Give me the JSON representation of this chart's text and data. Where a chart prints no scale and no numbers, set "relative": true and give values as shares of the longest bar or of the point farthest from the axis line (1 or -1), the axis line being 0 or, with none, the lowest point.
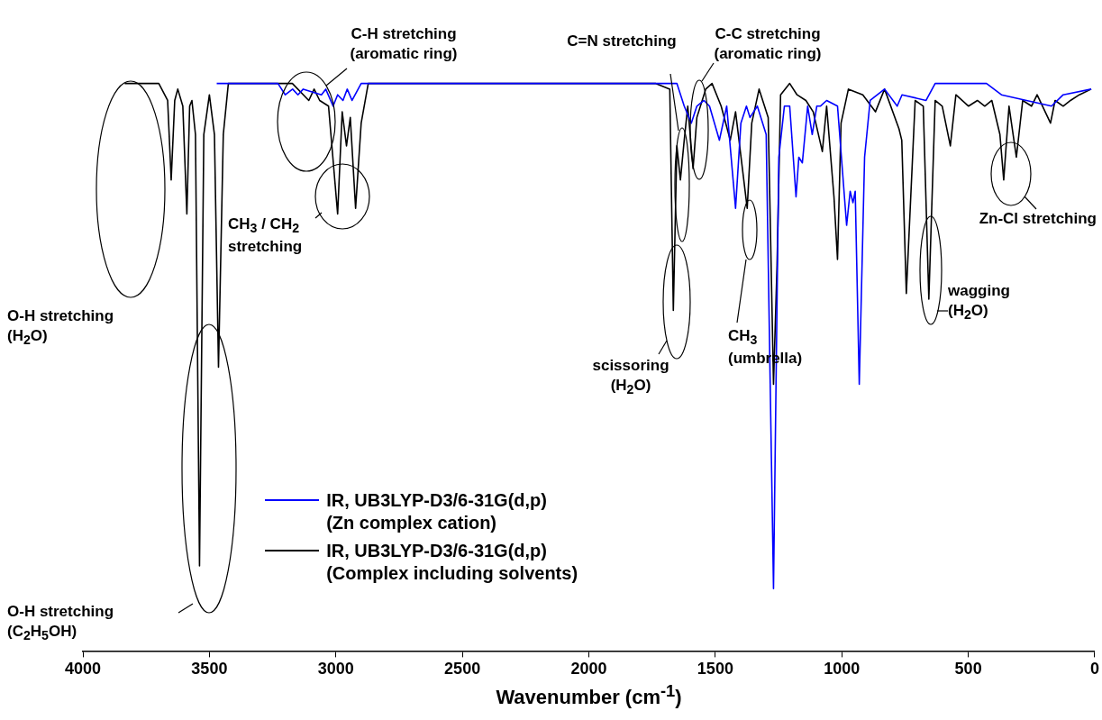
{
  "chart_data": {
    "type": "line",
    "relative": true,
    "xlabel": "Wavenumber (cm$^{-1}$)",
    "xlim": [
      4000,
      0
    ],
    "xticks": [
      4000,
      3500,
      3000,
      2500,
      2000,
      1500,
      1000,
      500,
      0
    ],
    "legend": "bottom",
    "series": [
      {
        "name": "IR, UB3LYP-D3/6-31G(d,p)\n(Zn complex cation)",
        "color": "#0000ff",
        "x": [
          3471,
          3229,
          3200,
          3171,
          3150,
          3129,
          3057,
          3040,
          3011,
          2993,
          2972,
          2955,
          2936,
          2900,
          1737,
          1652,
          1623,
          1595,
          1573,
          1545,
          1523,
          1484,
          1455,
          1420,
          1399,
          1377,
          1363,
          1334,
          1299,
          1270,
          1249,
          1227,
          1206,
          1181,
          1170,
          1156,
          1135,
          1117,
          1099,
          1085,
          1060,
          1017,
          981,
          967,
          956,
          947,
          931,
          910,
          888,
          831,
          781,
          762,
          667,
          631,
          428,
          369,
          171,
          125,
          14
        ],
        "values": [
          1,
          1,
          0.98,
          0.99,
          0.98,
          0.99,
          0.98,
          0.99,
          0.96,
          0.98,
          0.97,
          0.99,
          0.97,
          1,
          1,
          1,
          0.96,
          0.93,
          0.96,
          0.97,
          0.96,
          0.9,
          0.96,
          0.78,
          0.93,
          0.96,
          0.94,
          0.96,
          0.91,
          0.11,
          0.87,
          0.96,
          0.96,
          0.8,
          0.87,
          0.86,
          0.96,
          0.91,
          0.96,
          0.96,
          0.97,
          0.96,
          0.75,
          0.81,
          0.79,
          0.81,
          0.47,
          0.87,
          0.97,
          0.99,
          0.96,
          0.98,
          0.97,
          1,
          1,
          0.98,
          0.96,
          0.98,
          0.99
        ]
      },
      {
        "name": "IR, UB3LYP-D3/6-31G(d,p)\n(Complex including solvents)",
        "color": "#000000",
        "x": [
          3835,
          3700,
          3665,
          3651,
          3637,
          3625,
          3605,
          3589,
          3578,
          3569,
          3555,
          3539,
          3522,
          3500,
          3480,
          3464,
          3445,
          3425,
          3400,
          3254,
          3172,
          3107,
          3086,
          3064,
          3029,
          2993,
          2975,
          2958,
          2943,
          2922,
          2900,
          2872,
          2800,
          1737,
          1680,
          1666,
          1652,
          1638,
          1623,
          1609,
          1588,
          1573,
          1538,
          1513,
          1477,
          1441,
          1420,
          1374,
          1356,
          1327,
          1291,
          1270,
          1256,
          1242,
          1206,
          1177,
          1142,
          1113,
          1077,
          1060,
          1031,
          1017,
          1003,
          974,
          917,
          867,
          831,
          774,
          763,
          745,
          710,
          678,
          656,
          631,
          603,
          571,
          549,
          499,
          464,
          435,
          407,
          375,
          360,
          339,
          310,
          285,
          250,
          228,
          175,
          157,
          125,
          96,
          61,
          14
        ],
        "values": [
          1,
          1,
          0.97,
          0.83,
          0.97,
          0.99,
          0.96,
          0.77,
          0.96,
          0.97,
          0.91,
          0.15,
          0.91,
          0.98,
          0.91,
          0.5,
          0.91,
          1,
          1,
          1,
          1,
          0.97,
          0.99,
          0.97,
          0.96,
          0.77,
          0.95,
          0.89,
          0.94,
          0.78,
          0.93,
          1,
          1,
          1,
          0.99,
          0.6,
          0.89,
          0.83,
          0.9,
          0.96,
          0.85,
          0.94,
          0.99,
          1,
          0.96,
          0.9,
          0.95,
          0.78,
          0.93,
          0.99,
          0.94,
          0.47,
          0.68,
          0.98,
          1,
          0.98,
          0.97,
          0.95,
          0.88,
          0.96,
          0.8,
          0.69,
          0.93,
          0.99,
          0.98,
          0.95,
          0.99,
          0.92,
          0.9,
          0.63,
          0.97,
          0.96,
          0.62,
          0.97,
          0.96,
          0.89,
          0.98,
          0.96,
          0.97,
          0.96,
          0.97,
          0.91,
          0.83,
          0.96,
          0.87,
          0.97,
          0.96,
          0.98,
          0.93,
          0.97,
          0.96,
          0.97,
          0.98,
          0.99
        ]
      }
    ],
    "annotations": [
      "O-H stretching\n(H$_{2}$O)",
      "O-H stretching\n(C$_{2}$H$_{5}$OH)",
      "C-H stretching\n(aromatic ring)",
      "CH$_{3}$ / CH$_{2}$\nstretching",
      "C=N stretching",
      "C-C stretching\n(aromatic ring)",
      "scissoring\n(H$_{2}$O)",
      "CH$_{3}$\n(umbrella)",
      "wagging\n(H$_{2}$O)",
      "Zn-Cl stretching"
    ]
  }
}
